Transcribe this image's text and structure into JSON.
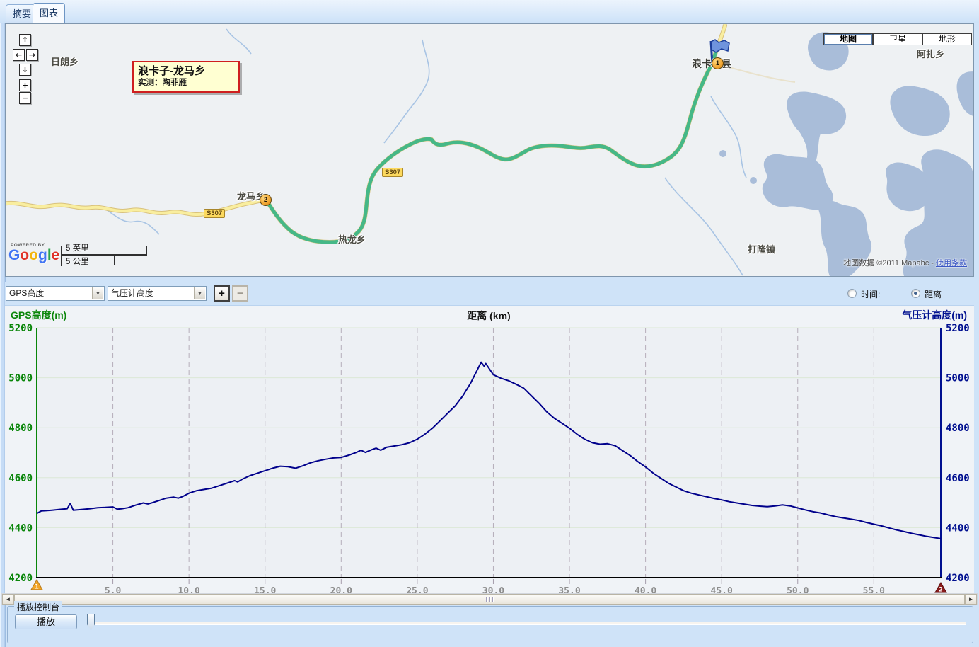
{
  "tabs": {
    "summary": "摘要",
    "chart": "图表"
  },
  "map": {
    "nav": {
      "up": "↑",
      "left": "←",
      "right": "→",
      "down": "↓",
      "zoom_in": "+",
      "zoom_out": "−"
    },
    "type_buttons": [
      {
        "label": "地图",
        "active": true
      },
      {
        "label": "卫星",
        "active": false
      },
      {
        "label": "地形",
        "active": false
      }
    ],
    "callout": {
      "title": "浪卡子-龙马乡",
      "subtitle": "实测：陶菲雁"
    },
    "labels": {
      "rilang": "日朗乡",
      "longma": "龙马乡",
      "relong": "热龙乡",
      "langkazi": "浪卡子县",
      "dalong": "打隆镇",
      "azha": "阿扎乡"
    },
    "road_badge": "S307",
    "markers": {
      "start": "1",
      "end": "2"
    },
    "scale": {
      "miles": "5 英里",
      "km": "5 公里"
    },
    "powered_by": "POWERED BY",
    "logo_text": "Google",
    "logo_colors": [
      "#4275f4",
      "#e03329",
      "#f2b50f",
      "#4275f4",
      "#2ba24c",
      "#e03329"
    ],
    "attribution": {
      "prefix": "地图数据",
      "copyright": "©2011 Mapabc -",
      "link": "使用条款"
    },
    "track_color": "#45b887",
    "road_fill": "#f9ee9f",
    "road_casing": "#d9c27c",
    "water_color": "#a9bdd9",
    "river_color": "#a8c4e4"
  },
  "controls": {
    "series1": "GPS高度",
    "series2": "气压计高度",
    "plus": "+",
    "minus": "−",
    "time": "时间:",
    "distance": "距离",
    "dropdown_arrow": "▼",
    "selected_mode": "距离"
  },
  "chart_data": {
    "type": "line",
    "title": "",
    "xlabel": "距离 (km)",
    "ylabel_left": "GPS高度(m)",
    "ylabel_right": "气压计高度(m)",
    "xlim": [
      0,
      59.4
    ],
    "ylim": [
      4200,
      5200
    ],
    "grid": true,
    "legend_position": "none",
    "xticks": [
      5,
      10,
      15,
      20,
      25,
      30,
      35,
      40,
      45,
      50,
      55
    ],
    "xtick_labels": [
      "5.0",
      "10.0",
      "15.0",
      "20.0",
      "25.0",
      "30.0",
      "35.0",
      "40.0",
      "45.0",
      "50.0",
      "55.0"
    ],
    "yticks": [
      4200,
      4400,
      4600,
      4800,
      5000,
      5200
    ],
    "line_color": "#00008b",
    "left_axis_color": "#0a860a",
    "right_axis_color": "#000f90",
    "start_marker": {
      "label": "1",
      "color": "#f2a426",
      "edge": "#b8791a"
    },
    "end_marker": {
      "label": "2",
      "color": "#8b1c1c",
      "edge": "#5e0f0f"
    },
    "series": [
      {
        "name": "气压计高度",
        "points": [
          [
            0,
            4457
          ],
          [
            0.3,
            4467
          ],
          [
            0.6,
            4468
          ],
          [
            1,
            4470
          ],
          [
            1.5,
            4473
          ],
          [
            2,
            4476
          ],
          [
            2.2,
            4497
          ],
          [
            2.4,
            4470
          ],
          [
            3,
            4473
          ],
          [
            3.5,
            4476
          ],
          [
            4,
            4480
          ],
          [
            4.5,
            4481
          ],
          [
            5,
            4483
          ],
          [
            5.3,
            4474
          ],
          [
            5.6,
            4476
          ],
          [
            6,
            4480
          ],
          [
            6.5,
            4490
          ],
          [
            7,
            4499
          ],
          [
            7.3,
            4495
          ],
          [
            7.6,
            4500
          ],
          [
            8,
            4508
          ],
          [
            8.5,
            4518
          ],
          [
            9,
            4522
          ],
          [
            9.3,
            4518
          ],
          [
            9.6,
            4525
          ],
          [
            10,
            4538
          ],
          [
            10.5,
            4548
          ],
          [
            11,
            4553
          ],
          [
            11.5,
            4558
          ],
          [
            12,
            4568
          ],
          [
            12.5,
            4578
          ],
          [
            13,
            4588
          ],
          [
            13.2,
            4583
          ],
          [
            13.5,
            4594
          ],
          [
            14,
            4608
          ],
          [
            14.5,
            4618
          ],
          [
            15,
            4628
          ],
          [
            15.5,
            4638
          ],
          [
            16,
            4646
          ],
          [
            16.5,
            4644
          ],
          [
            17,
            4638
          ],
          [
            17.5,
            4648
          ],
          [
            18,
            4660
          ],
          [
            18.5,
            4668
          ],
          [
            19,
            4674
          ],
          [
            19.5,
            4679
          ],
          [
            20,
            4681
          ],
          [
            20.5,
            4690
          ],
          [
            21,
            4701
          ],
          [
            21.3,
            4710
          ],
          [
            21.6,
            4701
          ],
          [
            22,
            4712
          ],
          [
            22.3,
            4718
          ],
          [
            22.6,
            4710
          ],
          [
            23,
            4722
          ],
          [
            23.5,
            4727
          ],
          [
            24,
            4732
          ],
          [
            24.5,
            4740
          ],
          [
            25,
            4754
          ],
          [
            25.5,
            4774
          ],
          [
            26,
            4798
          ],
          [
            26.5,
            4828
          ],
          [
            27,
            4858
          ],
          [
            27.5,
            4888
          ],
          [
            28,
            4928
          ],
          [
            28.5,
            4978
          ],
          [
            29,
            5038
          ],
          [
            29.2,
            5062
          ],
          [
            29.4,
            5046
          ],
          [
            29.5,
            5057
          ],
          [
            30,
            5012
          ],
          [
            30.5,
            4998
          ],
          [
            31,
            4988
          ],
          [
            31.5,
            4974
          ],
          [
            32,
            4958
          ],
          [
            32.5,
            4928
          ],
          [
            33,
            4898
          ],
          [
            33.5,
            4864
          ],
          [
            34,
            4838
          ],
          [
            34.5,
            4818
          ],
          [
            35,
            4798
          ],
          [
            35.5,
            4774
          ],
          [
            36,
            4754
          ],
          [
            36.5,
            4740
          ],
          [
            37,
            4734
          ],
          [
            37.5,
            4736
          ],
          [
            38,
            4728
          ],
          [
            38.5,
            4708
          ],
          [
            39,
            4688
          ],
          [
            39.5,
            4664
          ],
          [
            40,
            4643
          ],
          [
            40.5,
            4618
          ],
          [
            41,
            4598
          ],
          [
            41.5,
            4578
          ],
          [
            42,
            4563
          ],
          [
            42.5,
            4548
          ],
          [
            43,
            4538
          ],
          [
            43.5,
            4531
          ],
          [
            44,
            4524
          ],
          [
            44.5,
            4517
          ],
          [
            45,
            4511
          ],
          [
            45.5,
            4504
          ],
          [
            46,
            4499
          ],
          [
            46.5,
            4494
          ],
          [
            47,
            4489
          ],
          [
            47.5,
            4486
          ],
          [
            48,
            4484
          ],
          [
            48.5,
            4487
          ],
          [
            49,
            4491
          ],
          [
            49.5,
            4487
          ],
          [
            50,
            4479
          ],
          [
            50.5,
            4471
          ],
          [
            51,
            4464
          ],
          [
            51.5,
            4459
          ],
          [
            52,
            4451
          ],
          [
            52.5,
            4444
          ],
          [
            53,
            4439
          ],
          [
            53.5,
            4434
          ],
          [
            54,
            4429
          ],
          [
            54.5,
            4421
          ],
          [
            55,
            4414
          ],
          [
            55.5,
            4407
          ],
          [
            56,
            4399
          ],
          [
            56.5,
            4391
          ],
          [
            57,
            4384
          ],
          [
            57.5,
            4377
          ],
          [
            58,
            4371
          ],
          [
            58.5,
            4365
          ],
          [
            59,
            4360
          ],
          [
            59.4,
            4356
          ]
        ]
      }
    ]
  },
  "playback": {
    "group_title": "播放控制台",
    "play_label": "播放"
  }
}
